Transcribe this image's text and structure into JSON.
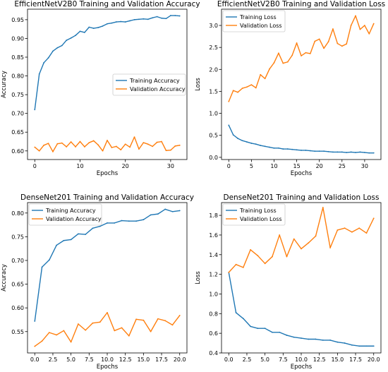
{
  "colors": {
    "train": "#1f77b4",
    "val": "#ff7f0e"
  },
  "chart_data": [
    {
      "type": "line",
      "title": "EfficientNetV2B0 Training and Validation Accuracy",
      "xlabel": "Epochs",
      "ylabel": "Accuracy",
      "xlim": [
        -1.6,
        33.6
      ],
      "ylim": [
        0.577,
        0.978
      ],
      "xticks": [
        0,
        10,
        20,
        30
      ],
      "xtick_labels": [
        "0",
        "10",
        "20",
        "30"
      ],
      "yticks": [
        0.6,
        0.65,
        0.7,
        0.75,
        0.8,
        0.85,
        0.9,
        0.95
      ],
      "ytick_labels": [
        "0.60",
        "0.65",
        "0.70",
        "0.75",
        "0.80",
        "0.85",
        "0.90",
        "0.95"
      ],
      "legend_location": "center-right",
      "x": [
        0,
        1,
        2,
        3,
        4,
        5,
        6,
        7,
        8,
        9,
        10,
        11,
        12,
        13,
        14,
        15,
        16,
        17,
        18,
        19,
        20,
        21,
        22,
        23,
        24,
        25,
        26,
        27,
        28,
        29,
        30,
        31,
        32
      ],
      "series": [
        {
          "name": "Training Accuracy",
          "values": [
            0.71,
            0.805,
            0.835,
            0.848,
            0.866,
            0.875,
            0.881,
            0.895,
            0.901,
            0.908,
            0.919,
            0.916,
            0.93,
            0.927,
            0.929,
            0.933,
            0.939,
            0.941,
            0.944,
            0.945,
            0.944,
            0.947,
            0.95,
            0.951,
            0.952,
            0.951,
            0.955,
            0.958,
            0.954,
            0.953,
            0.961,
            0.961,
            0.96
          ]
        },
        {
          "name": "Validation Accuracy",
          "values": [
            0.61,
            0.6,
            0.615,
            0.62,
            0.598,
            0.619,
            0.621,
            0.611,
            0.624,
            0.611,
            0.625,
            0.611,
            0.622,
            0.627,
            0.616,
            0.6,
            0.628,
            0.609,
            0.612,
            0.603,
            0.618,
            0.61,
            0.637,
            0.605,
            0.622,
            0.618,
            0.612,
            0.623,
            0.625,
            0.601,
            0.602,
            0.613,
            0.615
          ]
        }
      ]
    },
    {
      "type": "line",
      "title": "EfficientNetV2B0 Training and Validation Loss",
      "xlabel": "Epochs",
      "ylabel": "Loss",
      "xlim": [
        -1.6,
        33.6
      ],
      "ylim": [
        -0.05,
        3.37
      ],
      "xticks": [
        0,
        5,
        10,
        15,
        20,
        25,
        30
      ],
      "xtick_labels": [
        "0",
        "5",
        "10",
        "15",
        "20",
        "25",
        "30"
      ],
      "yticks": [
        0.0,
        0.5,
        1.0,
        1.5,
        2.0,
        2.5,
        3.0
      ],
      "ytick_labels": [
        "0.0",
        "0.5",
        "1.0",
        "1.5",
        "2.0",
        "2.5",
        "3.0"
      ],
      "legend_location": "top-left",
      "x": [
        0,
        1,
        2,
        3,
        4,
        5,
        6,
        7,
        8,
        9,
        10,
        11,
        12,
        13,
        14,
        15,
        16,
        17,
        18,
        19,
        20,
        21,
        22,
        23,
        24,
        25,
        26,
        27,
        28,
        29,
        30,
        31,
        32
      ],
      "series": [
        {
          "name": "Training Loss",
          "values": [
            0.73,
            0.51,
            0.43,
            0.38,
            0.35,
            0.32,
            0.3,
            0.27,
            0.25,
            0.23,
            0.21,
            0.21,
            0.19,
            0.19,
            0.18,
            0.17,
            0.16,
            0.16,
            0.15,
            0.14,
            0.14,
            0.14,
            0.13,
            0.12,
            0.12,
            0.12,
            0.11,
            0.12,
            0.11,
            0.12,
            0.11,
            0.1,
            0.1
          ]
        },
        {
          "name": "Validation Loss",
          "values": [
            1.27,
            1.52,
            1.48,
            1.57,
            1.6,
            1.65,
            1.58,
            1.88,
            1.79,
            2.01,
            2.15,
            2.37,
            2.14,
            2.17,
            2.32,
            2.6,
            2.31,
            2.38,
            2.36,
            2.64,
            2.69,
            2.48,
            2.63,
            2.92,
            2.59,
            2.53,
            2.58,
            3.0,
            3.22,
            2.91,
            3.0,
            2.81,
            3.04
          ]
        }
      ]
    },
    {
      "type": "line",
      "title": "DenseNet201 Training and Validation Accuracy",
      "xlabel": "Epochs",
      "ylabel": "Accuracy",
      "xlim": [
        -1.0,
        21.0
      ],
      "ylim": [
        0.505,
        0.822
      ],
      "xticks": [
        0.0,
        2.5,
        5.0,
        7.5,
        10.0,
        12.5,
        15.0,
        17.5,
        20.0
      ],
      "xtick_labels": [
        "0.0",
        "2.5",
        "5.0",
        "7.5",
        "10.0",
        "12.5",
        "15.0",
        "17.5",
        "20.0"
      ],
      "yticks": [
        0.55,
        0.6,
        0.65,
        0.7,
        0.75,
        0.8
      ],
      "ytick_labels": [
        "0.55",
        "0.60",
        "0.65",
        "0.70",
        "0.75",
        "0.80"
      ],
      "legend_location": "top-left",
      "x": [
        0,
        1,
        2,
        3,
        4,
        5,
        6,
        7,
        8,
        9,
        10,
        11,
        12,
        13,
        14,
        15,
        16,
        17,
        18,
        19,
        20
      ],
      "series": [
        {
          "name": "Training Accuracy",
          "values": [
            0.572,
            0.686,
            0.701,
            0.732,
            0.742,
            0.744,
            0.756,
            0.755,
            0.768,
            0.772,
            0.779,
            0.779,
            0.784,
            0.783,
            0.783,
            0.786,
            0.796,
            0.798,
            0.808,
            0.803,
            0.805
          ]
        },
        {
          "name": "Validation Accuracy",
          "values": [
            0.519,
            0.53,
            0.548,
            0.543,
            0.552,
            0.528,
            0.566,
            0.553,
            0.568,
            0.57,
            0.59,
            0.552,
            0.558,
            0.541,
            0.576,
            0.574,
            0.55,
            0.577,
            0.573,
            0.564,
            0.584
          ]
        }
      ]
    },
    {
      "type": "line",
      "title": "DenseNet201 Training and Validation Loss",
      "xlabel": "Epochs",
      "ylabel": "Loss",
      "xlim": [
        -1.0,
        21.0
      ],
      "ylim": [
        0.4,
        1.93
      ],
      "xticks": [
        0.0,
        2.5,
        5.0,
        7.5,
        10.0,
        12.5,
        15.0,
        17.5,
        20.0
      ],
      "xtick_labels": [
        "0.0",
        "2.5",
        "5.0",
        "7.5",
        "10.0",
        "12.5",
        "15.0",
        "17.5",
        "20.0"
      ],
      "yticks": [
        0.4,
        0.6,
        0.8,
        1.0,
        1.2,
        1.4,
        1.6,
        1.8
      ],
      "ytick_labels": [
        "0.4",
        "0.6",
        "0.8",
        "1.0",
        "1.2",
        "1.4",
        "1.6",
        "1.8"
      ],
      "legend_location": "top-left",
      "x": [
        0,
        1,
        2,
        3,
        4,
        5,
        6,
        7,
        8,
        9,
        10,
        11,
        12,
        13,
        14,
        15,
        16,
        17,
        18,
        19,
        20
      ],
      "series": [
        {
          "name": "Training Loss",
          "values": [
            1.22,
            0.81,
            0.75,
            0.67,
            0.65,
            0.65,
            0.61,
            0.61,
            0.58,
            0.56,
            0.55,
            0.54,
            0.54,
            0.53,
            0.53,
            0.51,
            0.5,
            0.48,
            0.47,
            0.47,
            0.47
          ]
        },
        {
          "name": "Validation Loss",
          "values": [
            1.22,
            1.3,
            1.27,
            1.45,
            1.39,
            1.31,
            1.38,
            1.6,
            1.38,
            1.56,
            1.46,
            1.52,
            1.59,
            1.88,
            1.47,
            1.65,
            1.67,
            1.63,
            1.67,
            1.62,
            1.77
          ]
        }
      ]
    }
  ]
}
